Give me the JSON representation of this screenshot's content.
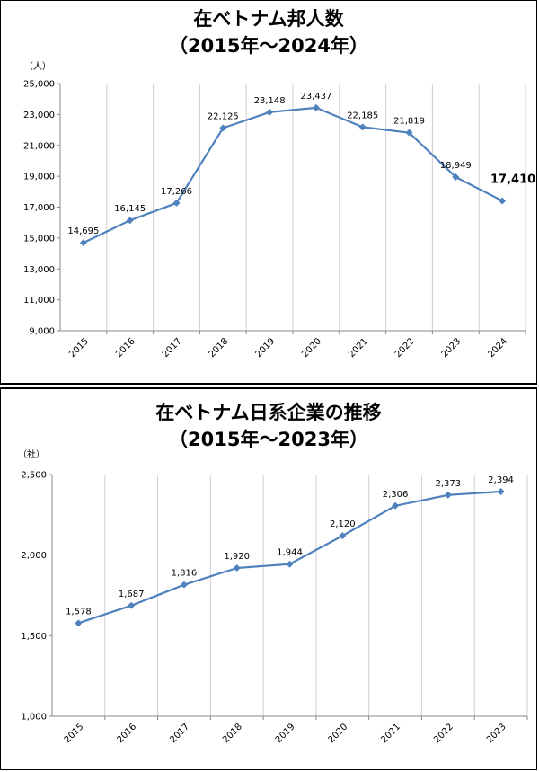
{
  "chart_data": [
    {
      "type": "line",
      "title": "在ベトナム邦人数",
      "subtitle": "（2015年～2024年）",
      "unit_label": "（人）",
      "categories": [
        "2015",
        "2016",
        "2017",
        "2018",
        "2019",
        "2020",
        "2021",
        "2022",
        "2023",
        "2024"
      ],
      "series": [
        {
          "values": [
            14695,
            16145,
            17266,
            22125,
            23148,
            23437,
            22185,
            21819,
            18949,
            17410
          ]
        }
      ],
      "data_labels": [
        "14,695",
        "16,145",
        "17,266",
        "22,125",
        "23,148",
        "23,437",
        "22,185",
        "21,819",
        "18,949",
        "17,410"
      ],
      "highlight_last": true,
      "ylim": [
        9000,
        25000
      ],
      "yticks": [
        9000,
        11000,
        13000,
        15000,
        17000,
        19000,
        21000,
        23000,
        25000
      ],
      "ytick_labels": [
        "9,000",
        "11,000",
        "13,000",
        "15,000",
        "17,000",
        "19,000",
        "21,000",
        "23,000",
        "25,000"
      ],
      "grid": "vertical",
      "line_color": "#4F81BD"
    },
    {
      "type": "line",
      "title": "在ベトナム日系企業の推移",
      "subtitle": "（2015年～2023年）",
      "unit_label": "（社）",
      "categories": [
        "2015",
        "2016",
        "2017",
        "2018",
        "2019",
        "2020",
        "2021",
        "2022",
        "2023"
      ],
      "series": [
        {
          "values": [
            1578,
            1687,
            1816,
            1920,
            1944,
            2120,
            2306,
            2373,
            2394
          ]
        }
      ],
      "data_labels": [
        "1,578",
        "1,687",
        "1,816",
        "1,920",
        "1,944",
        "2,120",
        "2,306",
        "2,373",
        "2,394"
      ],
      "highlight_last": false,
      "ylim": [
        1000,
        2500
      ],
      "yticks": [
        1000,
        1500,
        2000,
        2500
      ],
      "ytick_labels": [
        "1,000",
        "1,500",
        "2,000",
        "2,500"
      ],
      "grid": "vertical",
      "line_color": "#4F81BD"
    }
  ]
}
